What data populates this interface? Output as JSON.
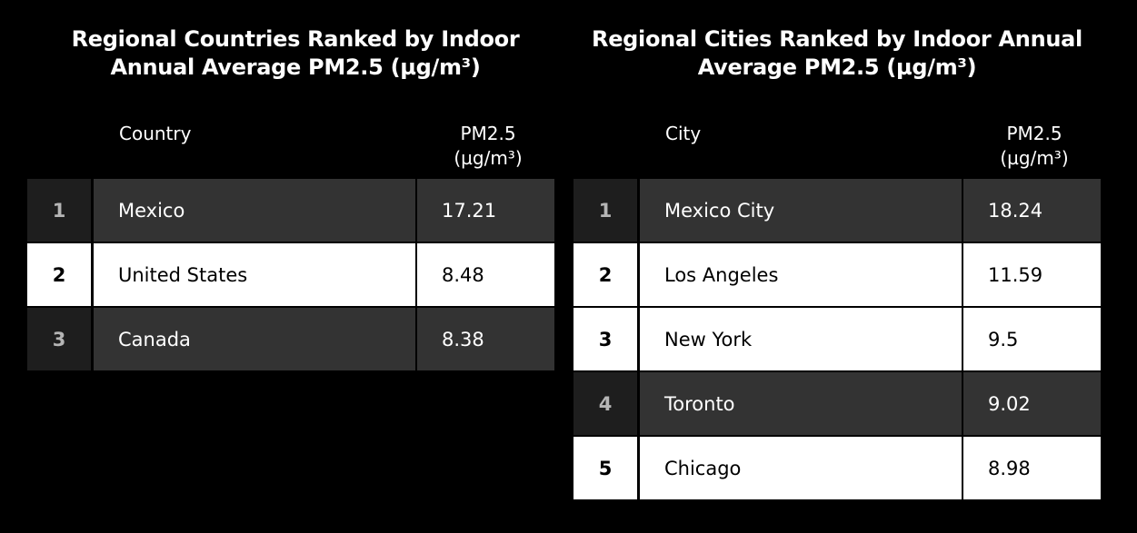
{
  "chart_data": [
    {
      "type": "table",
      "title": "Regional Countries Ranked by Indoor Annual Average PM2.5 (µg/m³)",
      "columns": [
        "",
        "Country",
        "PM2.5 (µg/m³)"
      ],
      "column_label_name": "Country",
      "column_label_value_line1": "PM2.5",
      "column_label_value_line2": "(µg/m³)",
      "rows": [
        {
          "rank": "1",
          "name": "Mexico",
          "value": "17.21",
          "style": "dark"
        },
        {
          "rank": "2",
          "name": "United States",
          "value": "8.48",
          "style": "light"
        },
        {
          "rank": "3",
          "name": "Canada",
          "value": "8.38",
          "style": "dark"
        }
      ]
    },
    {
      "type": "table",
      "title": "Regional Cities Ranked by Indoor Annual Average PM2.5 (µg/m³)",
      "columns": [
        "",
        "City",
        "PM2.5 (µg/m³)"
      ],
      "column_label_name": "City",
      "column_label_value_line1": "PM2.5",
      "column_label_value_line2": "(µg/m³)",
      "rows": [
        {
          "rank": "1",
          "name": "Mexico City",
          "value": "18.24",
          "style": "dark"
        },
        {
          "rank": "2",
          "name": "Los Angeles",
          "value": "11.59",
          "style": "light"
        },
        {
          "rank": "3",
          "name": "New York",
          "value": "9.5",
          "style": "light"
        },
        {
          "rank": "4",
          "name": "Toronto",
          "value": "9.02",
          "style": "dark"
        },
        {
          "rank": "5",
          "name": "Chicago",
          "value": "8.98",
          "style": "light"
        }
      ]
    }
  ],
  "colors": {
    "background": "#000000",
    "dark_row": "#333333",
    "dark_rank": "#1e1e1e",
    "light_row": "#ffffff"
  }
}
